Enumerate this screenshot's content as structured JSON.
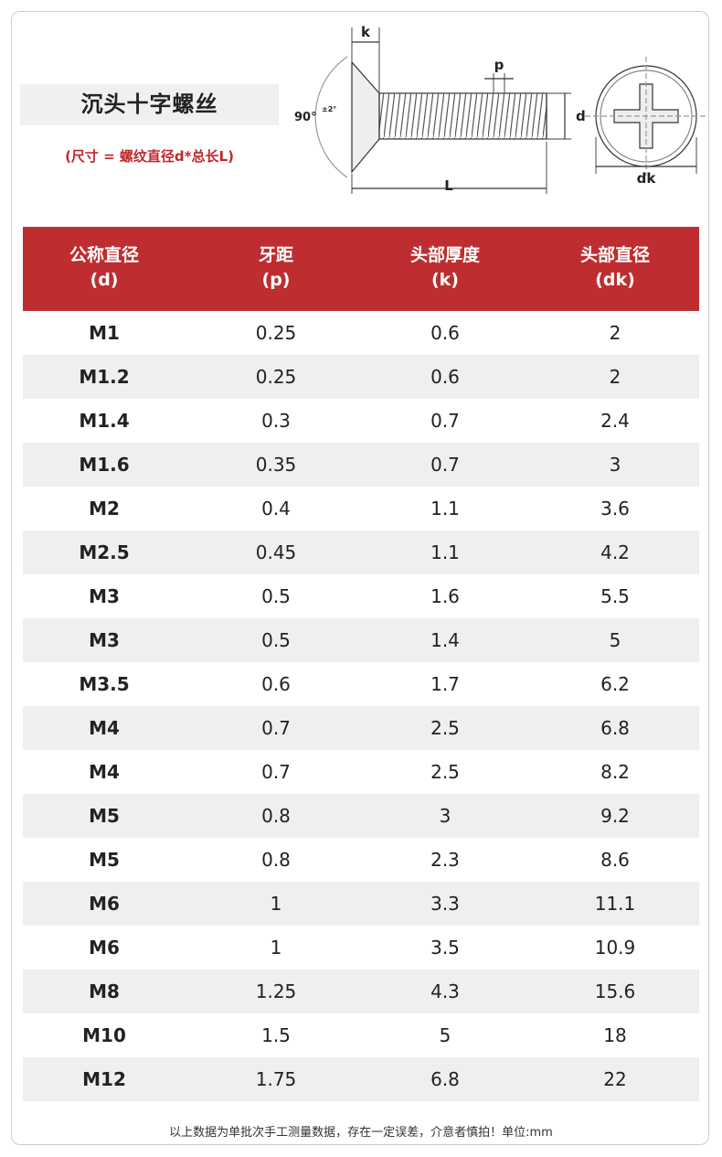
{
  "header": {
    "title": "沉头十字螺丝",
    "subtitle": "(尺寸 = 螺纹直径d*总长L)"
  },
  "diagram": {
    "k": "k",
    "p": "p",
    "d": "d",
    "L": "L",
    "dk": "dk",
    "angle": "90°",
    "tolerance": "±2°"
  },
  "table": {
    "columns": [
      {
        "name": "公称直径",
        "symbol": "(d)"
      },
      {
        "name": "牙距",
        "symbol": "(p)"
      },
      {
        "name": "头部厚度",
        "symbol": "(k)"
      },
      {
        "name": "头部直径",
        "symbol": "(dk)"
      }
    ],
    "rows": [
      [
        "M1",
        "0.25",
        "0.6",
        "2"
      ],
      [
        "M1.2",
        "0.25",
        "0.6",
        "2"
      ],
      [
        "M1.4",
        "0.3",
        "0.7",
        "2.4"
      ],
      [
        "M1.6",
        "0.35",
        "0.7",
        "3"
      ],
      [
        "M2",
        "0.4",
        "1.1",
        "3.6"
      ],
      [
        "M2.5",
        "0.45",
        "1.1",
        "4.2"
      ],
      [
        "M3",
        "0.5",
        "1.6",
        "5.5"
      ],
      [
        "M3",
        "0.5",
        "1.4",
        "5"
      ],
      [
        "M3.5",
        "0.6",
        "1.7",
        "6.2"
      ],
      [
        "M4",
        "0.7",
        "2.5",
        "6.8"
      ],
      [
        "M4",
        "0.7",
        "2.5",
        "8.2"
      ],
      [
        "M5",
        "0.8",
        "3",
        "9.2"
      ],
      [
        "M5",
        "0.8",
        "2.3",
        "8.6"
      ],
      [
        "M6",
        "1",
        "3.3",
        "11.1"
      ],
      [
        "M6",
        "1",
        "3.5",
        "10.9"
      ],
      [
        "M8",
        "1.25",
        "4.3",
        "15.6"
      ],
      [
        "M10",
        "1.5",
        "5",
        "18"
      ],
      [
        "M12",
        "1.75",
        "6.8",
        "22"
      ]
    ]
  },
  "footer": "以上数据为单批次手工测量数据，存在一定误差，介意者慎拍！单位:mm"
}
